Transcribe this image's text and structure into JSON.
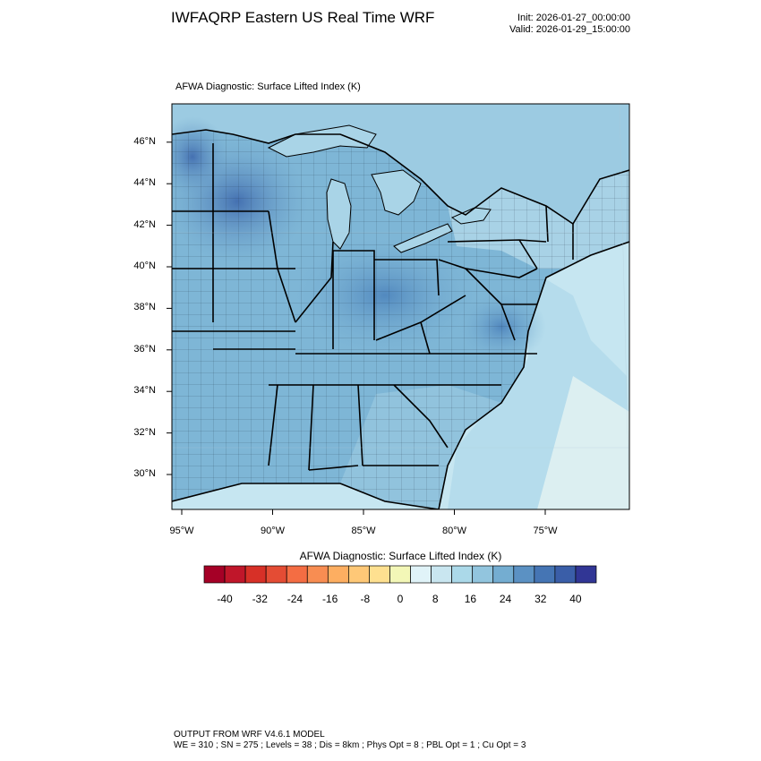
{
  "header": {
    "title": "IWFAQRP Eastern US Real Time WRF",
    "init": "Init: 2026-01-27_00:00:00",
    "valid": "Valid: 2026-01-29_15:00:00",
    "field_label": "AFWA Diagnostic: Surface Lifted Index   (K)"
  },
  "map": {
    "lon_ticks": [
      "95°W",
      "90°W",
      "85°W",
      "80°W",
      "75°W"
    ],
    "lat_ticks": [
      "46°N",
      "44°N",
      "42°N",
      "40°N",
      "38°N",
      "36°N",
      "34°N",
      "32°N",
      "30°N"
    ],
    "lon_values": [
      -95,
      -90,
      -85,
      -80,
      -75
    ],
    "lat_values": [
      46,
      44,
      42,
      40,
      38,
      36,
      34,
      32,
      30
    ],
    "lake_color": "#a9d4e7",
    "ocean_color": "#c6e6f1",
    "inland_color": "#7eb6d6",
    "strong_color": "#4a7fb6"
  },
  "colorbar": {
    "title": "AFWA Diagnostic: Surface Lifted Index  (K)",
    "tick_labels": [
      "-40",
      "-32",
      "-24",
      "-16",
      "-8",
      "0",
      "8",
      "16",
      "24",
      "32",
      "40"
    ],
    "colors": [
      "#a50026",
      "#c0162a",
      "#d73027",
      "#e44c34",
      "#f46d43",
      "#f88d52",
      "#fdae61",
      "#fec877",
      "#fee090",
      "#f3f7b7",
      "#e0f3f8",
      "#c9e6f0",
      "#abd9e9",
      "#92c5de",
      "#74add1",
      "#5b91c3",
      "#4575b4",
      "#3a5ea8",
      "#313695"
    ]
  },
  "footer": {
    "line1": "OUTPUT FROM WRF V4.6.1 MODEL",
    "line2": "WE = 310 ; SN = 275 ; Levels = 38 ; Dis = 8km ; Phys Opt = 8 ; PBL Opt = 1 ; Cu Opt = 3"
  }
}
